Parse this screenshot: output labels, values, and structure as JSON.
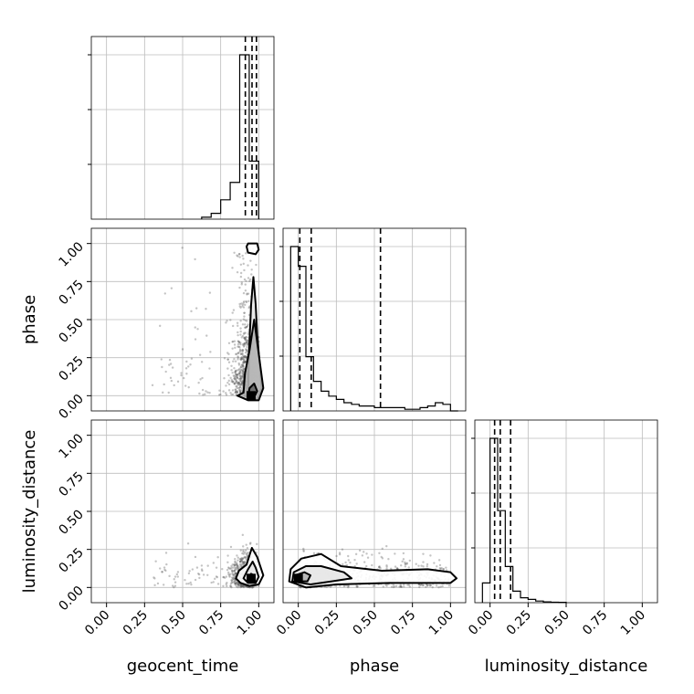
{
  "chart_data": {
    "type": "corner",
    "parameters": [
      "geocent_time",
      "phase",
      "luminosity_distance"
    ],
    "tick_labels": [
      "0.00",
      "0.25",
      "0.50",
      "0.75",
      "1.00"
    ],
    "axis_range": [
      -0.1,
      1.1
    ],
    "grid": true,
    "histograms": [
      {
        "parameter": "geocent_time",
        "bin_edges": [
          0.625,
          0.6875,
          0.75,
          0.8125,
          0.875,
          0.9375,
          1.0
        ],
        "counts": [
          1,
          3,
          10,
          19,
          85,
          30
        ],
        "quantiles": [
          0.912,
          0.956,
          0.985
        ]
      },
      {
        "parameter": "phase",
        "bin_edges": [
          -0.05,
          0.0,
          0.05,
          0.1,
          0.15,
          0.2,
          0.25,
          0.3,
          0.35,
          0.4,
          0.45,
          0.5,
          0.55,
          0.6,
          0.65,
          0.7,
          0.75,
          0.8,
          0.85,
          0.9,
          0.95,
          1.0,
          1.05
        ],
        "counts": [
          100,
          88,
          33,
          18,
          12,
          9,
          7,
          5,
          4,
          3,
          3,
          2,
          2,
          2,
          2,
          1,
          1,
          2,
          3,
          5,
          4,
          0
        ],
        "quantiles": [
          0.01,
          0.085,
          0.54
        ]
      },
      {
        "parameter": "luminosity_distance",
        "bin_edges": [
          -0.05,
          0.0,
          0.05,
          0.1,
          0.15,
          0.2,
          0.25,
          0.3,
          0.35,
          0.4,
          0.45,
          0.5
        ],
        "counts": [
          12,
          100,
          56,
          22,
          7,
          3,
          2,
          1,
          0.5,
          0.3,
          0.2
        ],
        "quantiles": [
          0.03,
          0.067,
          0.135
        ]
      }
    ],
    "pairs": [
      {
        "x": "geocent_time",
        "y": "phase",
        "mode": [
          0.95,
          0.0
        ],
        "contours": [
          [
            [
              0.92,
              0.98
            ],
            [
              0.93,
              0.94
            ],
            [
              0.98,
              0.93
            ],
            [
              1.0,
              0.96
            ],
            [
              0.99,
              1.0
            ],
            [
              0.93,
              1.0
            ]
          ],
          [
            [
              0.93,
              0.0
            ],
            [
              0.935,
              0.25
            ],
            [
              0.95,
              0.6
            ],
            [
              0.965,
              0.78
            ],
            [
              0.98,
              0.6
            ],
            [
              0.99,
              0.4
            ],
            [
              1.02,
              0.05
            ],
            [
              0.99,
              -0.02
            ],
            [
              0.94,
              -0.02
            ],
            [
              0.91,
              0.0
            ]
          ],
          [
            [
              0.9,
              0.02
            ],
            [
              0.91,
              0.15
            ],
            [
              0.94,
              0.3
            ],
            [
              0.97,
              0.5
            ],
            [
              0.99,
              0.35
            ],
            [
              1.03,
              0.05
            ],
            [
              1.0,
              -0.03
            ],
            [
              0.93,
              -0.03
            ],
            [
              0.86,
              0.0
            ]
          ],
          [
            [
              0.93,
              0.0
            ],
            [
              0.94,
              0.05
            ],
            [
              0.97,
              0.08
            ],
            [
              0.99,
              0.03
            ],
            [
              0.97,
              -0.01
            ],
            [
              0.94,
              -0.01
            ]
          ]
        ]
      },
      {
        "x": "geocent_time",
        "y": "luminosity_distance",
        "mode": [
          0.95,
          0.06
        ],
        "contours": [
          [
            [
              0.85,
              0.06
            ],
            [
              0.87,
              0.11
            ],
            [
              0.92,
              0.15
            ],
            [
              0.955,
              0.26
            ],
            [
              0.99,
              0.2
            ],
            [
              1.03,
              0.08
            ],
            [
              1.0,
              0.02
            ],
            [
              0.94,
              0.01
            ],
            [
              0.88,
              0.03
            ]
          ],
          [
            [
              0.9,
              0.06
            ],
            [
              0.93,
              0.12
            ],
            [
              0.96,
              0.17
            ],
            [
              0.98,
              0.13
            ],
            [
              1.0,
              0.07
            ],
            [
              0.98,
              0.03
            ],
            [
              0.93,
              0.03
            ]
          ],
          [
            [
              0.93,
              0.06
            ],
            [
              0.95,
              0.09
            ],
            [
              0.97,
              0.08
            ],
            [
              0.97,
              0.04
            ],
            [
              0.94,
              0.04
            ]
          ]
        ]
      },
      {
        "x": "phase",
        "y": "luminosity_distance",
        "mode": [
          0.0,
          0.06
        ],
        "contours": [
          [
            [
              -0.05,
              0.12
            ],
            [
              0.02,
              0.19
            ],
            [
              0.15,
              0.22
            ],
            [
              0.28,
              0.14
            ],
            [
              0.55,
              0.11
            ],
            [
              0.85,
              0.12
            ],
            [
              1.0,
              0.1
            ],
            [
              1.04,
              0.06
            ],
            [
              1.0,
              0.03
            ],
            [
              0.6,
              0.03
            ],
            [
              0.25,
              0.02
            ],
            [
              0.05,
              0.0
            ],
            [
              -0.06,
              0.04
            ]
          ],
          [
            [
              -0.03,
              0.1
            ],
            [
              0.05,
              0.14
            ],
            [
              0.15,
              0.14
            ],
            [
              0.3,
              0.1
            ],
            [
              0.35,
              0.06
            ],
            [
              0.22,
              0.04
            ],
            [
              0.08,
              0.02
            ],
            [
              -0.04,
              0.04
            ]
          ],
          [
            [
              -0.02,
              0.08
            ],
            [
              0.04,
              0.1
            ],
            [
              0.08,
              0.08
            ],
            [
              0.06,
              0.04
            ],
            [
              -0.01,
              0.04
            ]
          ]
        ]
      }
    ]
  }
}
